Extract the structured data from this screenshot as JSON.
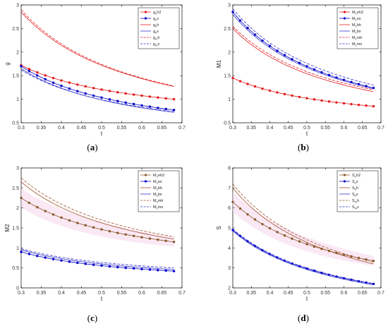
{
  "chart_data": [
    {
      "type": "line",
      "caption": {
        "open": "(",
        "letter": "a",
        "close": ")"
      },
      "xlabel": "t",
      "ylabel": "g",
      "xlim": [
        0.3,
        0.7
      ],
      "ylim": [
        0.5,
        3
      ],
      "xticks": [
        "0.3",
        "0.35",
        "0.4",
        "0.45",
        "0.5",
        "0.55",
        "0.6",
        "0.65",
        "0.7"
      ],
      "yticks": [
        "0.5",
        "1",
        "1.5",
        "2",
        "2.5",
        "3"
      ],
      "legend_position": "top-right",
      "series": [
        {
          "name": "g_eh2",
          "name_main": "g",
          "name_sub": "e",
          "name_rest": "h2",
          "color": "#e41a1c",
          "dash": "solid",
          "marker": true,
          "x0": 0.3,
          "x1": 0.68,
          "y0": 1.72,
          "y1": 1.0
        },
        {
          "name": "g_ex",
          "name_main": "g",
          "name_sub": "e",
          "name_rest": "x",
          "color": "#0000cc",
          "dash": "solid",
          "marker": true,
          "x0": 0.3,
          "x1": 0.68,
          "y0": 1.7,
          "y1": 0.77
        },
        {
          "name": "g_bh",
          "name_main": "g",
          "name_sub": "b",
          "name_rest": "h",
          "color": "#e41a1c",
          "dash": "solid",
          "marker": false,
          "x0": 0.3,
          "x1": 0.68,
          "y0": 2.85,
          "y1": 1.27
        },
        {
          "name": "g_bx",
          "name_main": "g",
          "name_sub": "b",
          "name_rest": "x",
          "color": "#3333cc",
          "dash": "solid",
          "marker": false,
          "x0": 0.3,
          "x1": 0.68,
          "y0": 1.65,
          "y1": 0.72
        },
        {
          "name": "g_mh",
          "name_main": "g",
          "name_sub": "m",
          "name_rest": "h",
          "color": "#e41a1c",
          "dash": "dashed",
          "marker": false,
          "x0": 0.3,
          "x1": 0.68,
          "y0": 2.9,
          "y1": 1.28
        },
        {
          "name": "g_mx",
          "name_main": "g",
          "name_sub": "m",
          "name_rest": "x",
          "color": "#3333cc",
          "dash": "dashed",
          "marker": false,
          "x0": 0.3,
          "x1": 0.68,
          "y0": 1.62,
          "y1": 0.74
        }
      ]
    },
    {
      "type": "line",
      "caption": {
        "open": "(",
        "letter": "b",
        "close": ")"
      },
      "xlabel": "t",
      "ylabel": "M1",
      "xlim": [
        0.3,
        0.7
      ],
      "ylim": [
        0.5,
        3
      ],
      "xticks": [
        "0.3",
        "0.35",
        "0.4",
        "0.45",
        "0.5",
        "0.55",
        "0.6",
        "0.65",
        "0.7"
      ],
      "yticks": [
        "0.5",
        "1",
        "1.5",
        "2",
        "2.5",
        "3"
      ],
      "legend_position": "top-right",
      "series": [
        {
          "name": "M_1eh2",
          "name_main": "M",
          "name_sub": "1",
          "name_rest": "eh2",
          "color": "#e41a1c",
          "dash": "solid",
          "marker": true,
          "x0": 0.3,
          "x1": 0.68,
          "y0": 1.45,
          "y1": 0.85
        },
        {
          "name": "M_1ex",
          "name_main": "M",
          "name_sub": "1",
          "name_rest": "ex",
          "color": "#0000cc",
          "dash": "solid",
          "marker": true,
          "x0": 0.3,
          "x1": 0.68,
          "y0": 2.85,
          "y1": 1.24
        },
        {
          "name": "M_1bh",
          "name_main": "M",
          "name_sub": "1",
          "name_rest": "bh",
          "color": "#e41a1c",
          "dash": "solid",
          "marker": false,
          "x0": 0.3,
          "x1": 0.68,
          "y0": 2.5,
          "y1": 1.16
        },
        {
          "name": "M_1bx",
          "name_main": "M",
          "name_sub": "1",
          "name_rest": "bx",
          "color": "#3333cc",
          "dash": "solid",
          "marker": false,
          "x0": 0.3,
          "x1": 0.68,
          "y0": 2.8,
          "y1": 1.22
        },
        {
          "name": "M_1mh",
          "name_main": "M",
          "name_sub": "1",
          "name_rest": "mh",
          "color": "#e41a1c",
          "dash": "dashed",
          "marker": false,
          "x0": 0.3,
          "x1": 0.68,
          "y0": 2.55,
          "y1": 1.2
        },
        {
          "name": "M_1mx",
          "name_main": "M",
          "name_sub": "1",
          "name_rest": "mx",
          "color": "#3333cc",
          "dash": "dashed",
          "marker": false,
          "x0": 0.3,
          "x1": 0.68,
          "y0": 2.92,
          "y1": 1.3
        }
      ]
    },
    {
      "type": "line",
      "caption": {
        "open": "(",
        "letter": "c",
        "close": ")"
      },
      "xlabel": "t",
      "ylabel": "M2",
      "xlim": [
        0.3,
        0.7
      ],
      "ylim": [
        0,
        3
      ],
      "xticks": [
        "0.3",
        "0.35",
        "0.4",
        "0.45",
        "0.5",
        "0.55",
        "0.6",
        "0.65",
        "0.7"
      ],
      "yticks": [
        "0",
        "0.5",
        "1",
        "1.5",
        "2",
        "2.5",
        "3"
      ],
      "legend_position": "top-right",
      "series": [
        {
          "name": "M_2eh2",
          "name_main": "M",
          "name_sub": "2",
          "name_rest": "eh2",
          "color": "#8b5a2b",
          "dash": "solid",
          "marker": true,
          "x0": 0.3,
          "x1": 0.68,
          "y0": 2.25,
          "y1": 1.15
        },
        {
          "name": "M_2ex",
          "name_main": "M",
          "name_sub": "2",
          "name_rest": "ex",
          "color": "#0000cc",
          "dash": "solid",
          "marker": true,
          "x0": 0.3,
          "x1": 0.68,
          "y0": 0.9,
          "y1": 0.42
        },
        {
          "name": "M_2bh",
          "name_main": "M",
          "name_sub": "2",
          "name_rest": "bh",
          "color": "#a0522d",
          "dash": "solid",
          "marker": false,
          "x0": 0.3,
          "x1": 0.68,
          "y0": 2.65,
          "y1": 1.22
        },
        {
          "name": "M_2bx",
          "name_main": "M",
          "name_sub": "2",
          "name_rest": "bx",
          "color": "#3333cc",
          "dash": "solid",
          "marker": false,
          "x0": 0.3,
          "x1": 0.68,
          "y0": 0.95,
          "y1": 0.46
        },
        {
          "name": "M_2mh",
          "name_main": "M",
          "name_sub": "2",
          "name_rest": "mh",
          "color": "#a0522d",
          "dash": "dashed",
          "marker": false,
          "x0": 0.3,
          "x1": 0.68,
          "y0": 2.75,
          "y1": 1.28
        },
        {
          "name": "M_2mx",
          "name_main": "M",
          "name_sub": "2",
          "name_rest": "mx",
          "color": "#3333cc",
          "dash": "dashed",
          "marker": false,
          "x0": 0.3,
          "x1": 0.68,
          "y0": 0.98,
          "y1": 0.5
        }
      ]
    },
    {
      "type": "line",
      "caption": {
        "open": "(",
        "letter": "d",
        "close": ")"
      },
      "xlabel": "t",
      "ylabel": "S",
      "xlim": [
        0.3,
        0.7
      ],
      "ylim": [
        2,
        8
      ],
      "xticks": [
        "0.3",
        "0.35",
        "0.4",
        "0.45",
        "0.5",
        "0.55",
        "0.6",
        "0.65",
        "0.7"
      ],
      "yticks": [
        "2",
        "3",
        "4",
        "5",
        "6",
        "7",
        "8"
      ],
      "legend_position": "top-right",
      "series": [
        {
          "name": "S_eeh2",
          "name_main": "S",
          "name_sub": "e",
          "name_rest": "h2",
          "color": "#8b5a2b",
          "dash": "solid",
          "marker": true,
          "x0": 0.3,
          "x1": 0.68,
          "y0": 6.3,
          "y1": 3.35
        },
        {
          "name": "S_ex",
          "name_main": "S",
          "name_sub": "e",
          "name_rest": "x",
          "color": "#0000cc",
          "dash": "solid",
          "marker": true,
          "x0": 0.3,
          "x1": 0.68,
          "y0": 4.9,
          "y1": 2.2
        },
        {
          "name": "S_bh",
          "name_main": "S",
          "name_sub": "b",
          "name_rest": "h",
          "color": "#a0522d",
          "dash": "solid",
          "marker": false,
          "x0": 0.3,
          "x1": 0.68,
          "y0": 7.0,
          "y1": 3.2
        },
        {
          "name": "S_bx",
          "name_main": "S",
          "name_sub": "b",
          "name_rest": "x",
          "color": "#3333cc",
          "dash": "solid",
          "marker": false,
          "x0": 0.3,
          "x1": 0.68,
          "y0": 4.85,
          "y1": 2.15
        },
        {
          "name": "S_mh",
          "name_main": "S",
          "name_sub": "m",
          "name_rest": "h",
          "color": "#a0522d",
          "dash": "dashed",
          "marker": false,
          "x0": 0.3,
          "x1": 0.68,
          "y0": 7.2,
          "y1": 3.3
        },
        {
          "name": "S_mx",
          "name_main": "S",
          "name_sub": "m",
          "name_rest": "x",
          "color": "#3333cc",
          "dash": "dashed",
          "marker": false,
          "x0": 0.3,
          "x1": 0.68,
          "y0": 4.95,
          "y1": 2.22
        }
      ]
    }
  ]
}
